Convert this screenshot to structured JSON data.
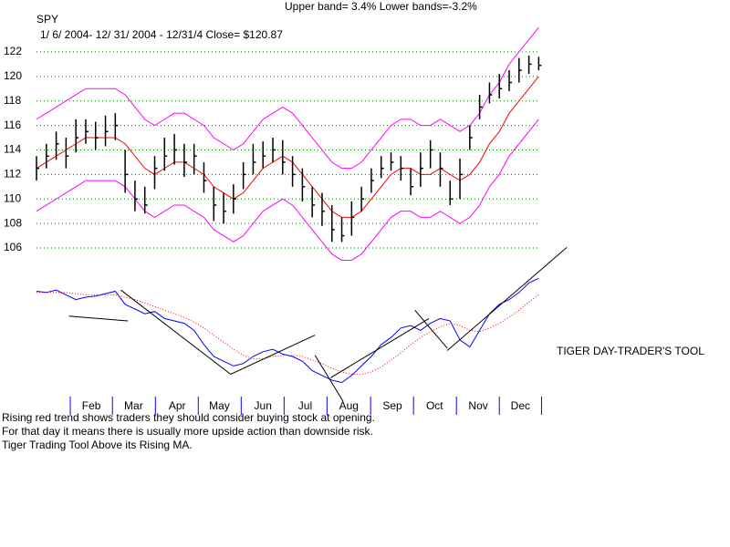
{
  "header": {
    "symbol": "SPY",
    "range": "1/ 6/ 2004- 12/ 31/ 2004 - 12/31/4   Close= $120.87",
    "bands": "Upper band= 3.4%    Lower bands=-3.2%",
    "tool": "TIGER DAY-TRADER'S TOOL"
  },
  "notes": [
    "Rising red trend shows traders they should consider buying stock at opening.",
    " For that day it means there is usually more upside action than downside risk.",
    "Tiger Trading Tool Above its Rising MA."
  ],
  "chart_data": [
    {
      "type": "ohlc",
      "bar_color": "#000000",
      "x": [
        6,
        13,
        20,
        27,
        34,
        41,
        48,
        55,
        62,
        69,
        76,
        83,
        90,
        97,
        104,
        111,
        118,
        125,
        132,
        139,
        146,
        153,
        160,
        167,
        174,
        181,
        188,
        195,
        202,
        209,
        216,
        223,
        230,
        237,
        244,
        251,
        258,
        265,
        272,
        279,
        286,
        293,
        300,
        307,
        314,
        321,
        328,
        335,
        342,
        349,
        356,
        363
      ],
      "high": [
        113.5,
        114.5,
        115.5,
        115,
        116.5,
        116.5,
        116.3,
        116.8,
        117,
        114,
        111.5,
        111,
        113.5,
        115,
        115.3,
        114.5,
        114.5,
        113,
        111,
        110.5,
        111.2,
        113,
        114.5,
        114.7,
        115,
        114.8,
        113.5,
        112.5,
        111,
        110.5,
        109.5,
        108.5,
        109.8,
        111,
        112.5,
        113.5,
        113.8,
        113.5,
        112.5,
        113.8,
        114.8,
        113.8,
        111.5,
        113.3,
        116,
        118.5,
        119.5,
        120.2,
        120.5,
        121.5,
        121.7,
        121.6
      ],
      "low": [
        111.5,
        112.5,
        113.2,
        112.5,
        113.8,
        114.5,
        114,
        114.3,
        114.8,
        110.5,
        109,
        108.8,
        110.8,
        112.3,
        112.8,
        111.8,
        112,
        110.5,
        108.2,
        108,
        108.8,
        110.8,
        112,
        112.5,
        113,
        112,
        111,
        109.8,
        108.5,
        107.8,
        106.5,
        106.5,
        107,
        109,
        110.5,
        111.7,
        112.3,
        111.5,
        110.3,
        111,
        112.5,
        111,
        109.5,
        110,
        114,
        116.5,
        117.8,
        118.2,
        118.8,
        119.5,
        120.2,
        120.5
      ],
      "close": [
        112.5,
        113.5,
        114.5,
        113.5,
        115,
        115.5,
        115,
        115.5,
        116,
        112,
        110,
        109.5,
        112.5,
        113.5,
        114,
        113,
        113.5,
        111.5,
        109.5,
        109,
        110,
        112,
        113,
        113.5,
        114,
        113,
        112,
        111,
        109.5,
        109,
        107.5,
        107,
        108.5,
        110,
        111.5,
        112.5,
        113,
        112.5,
        111,
        112.5,
        114,
        112.5,
        110,
        112,
        115,
        117.5,
        118.5,
        119,
        119.5,
        120.5,
        121,
        120.9
      ],
      "series": [
        {
          "color": "#ff0000",
          "values": [
            112.5,
            113,
            113.5,
            114,
            114.5,
            115,
            115,
            115,
            115,
            114.5,
            113.5,
            112.5,
            112,
            112.5,
            113,
            113,
            112.5,
            112,
            111,
            110.5,
            110,
            110.5,
            111.5,
            112.5,
            113,
            113.5,
            113,
            112,
            111,
            110,
            109,
            108.5,
            108.5,
            109,
            110,
            111,
            112,
            112.5,
            112.5,
            112,
            112,
            112.5,
            112,
            111.5,
            112,
            113,
            114.5,
            115.5,
            117,
            118,
            119,
            120
          ]
        },
        {
          "color": "#ff00ff",
          "values": [
            116.5,
            117,
            117.5,
            118,
            118.5,
            119,
            119,
            119,
            119,
            118.5,
            117.5,
            116.5,
            116,
            116.5,
            117,
            117,
            116.5,
            116,
            115,
            114.5,
            114,
            114.5,
            115.5,
            116.5,
            117,
            117.5,
            117,
            116,
            115,
            114,
            113,
            112.5,
            112.5,
            113,
            114,
            115,
            116,
            116.5,
            116.5,
            116,
            116,
            116.5,
            116,
            115.5,
            116,
            117,
            118.5,
            119.5,
            121,
            122,
            123,
            124
          ]
        },
        {
          "color": "#ff00ff",
          "values": [
            109,
            109.5,
            110,
            110.5,
            111,
            111.5,
            111.5,
            111.5,
            111.5,
            111,
            110,
            109,
            108.5,
            109,
            109.5,
            109.5,
            109,
            108.5,
            107.5,
            107,
            106.5,
            107,
            108,
            109,
            109.5,
            110,
            109.5,
            108.5,
            107.5,
            106.5,
            105.5,
            105,
            105,
            105.5,
            106.5,
            107.5,
            108.5,
            109,
            109,
            108.5,
            108.5,
            109,
            108.5,
            108,
            108.5,
            109.5,
            111,
            112,
            113.5,
            114.5,
            115.5,
            116.5
          ]
        }
      ],
      "xlim": [
        6,
        366
      ],
      "ylim": [
        104,
        125
      ],
      "yticks": [
        106,
        108,
        110,
        112,
        114,
        116,
        118,
        120,
        122
      ],
      "grid": true,
      "grid_color": "#008000"
    },
    {
      "type": "line",
      "x": [
        6,
        13,
        20,
        27,
        34,
        41,
        48,
        55,
        62,
        69,
        76,
        83,
        90,
        97,
        104,
        111,
        118,
        125,
        132,
        139,
        146,
        153,
        160,
        167,
        174,
        181,
        188,
        195,
        202,
        209,
        216,
        223,
        230,
        237,
        244,
        251,
        258,
        265,
        272,
        279,
        286,
        293,
        300,
        307,
        314,
        321,
        328,
        335,
        342,
        349,
        356,
        363
      ],
      "series": [
        {
          "color": "#0000ff",
          "values": [
            85,
            84,
            86,
            82,
            78,
            80,
            81,
            83,
            85,
            74,
            70,
            66,
            68,
            62,
            60,
            58,
            52,
            40,
            30,
            26,
            22,
            24,
            30,
            34,
            36,
            32,
            30,
            26,
            18,
            14,
            10,
            8,
            14,
            22,
            30,
            40,
            46,
            54,
            56,
            52,
            58,
            62,
            60,
            44,
            38,
            52,
            66,
            74,
            78,
            84,
            92,
            96
          ]
        },
        {
          "color": "#ff0000",
          "dashed": true,
          "values": [
            84,
            84,
            84,
            84,
            83,
            82,
            82,
            82,
            82,
            80,
            78,
            75,
            72,
            69,
            66,
            63,
            59,
            54,
            48,
            42,
            36,
            31,
            28,
            28,
            30,
            31,
            31,
            30,
            27,
            24,
            20,
            17,
            15,
            15,
            17,
            21,
            27,
            33,
            40,
            46,
            51,
            55,
            58,
            56,
            52,
            51,
            54,
            58,
            63,
            69,
            76,
            82
          ]
        }
      ],
      "trendlines": [
        {
          "x": [
            29,
            71
          ],
          "values": [
            64,
            60
          ]
        },
        {
          "x": [
            66,
            144
          ],
          "values": [
            86,
            15
          ]
        },
        {
          "x": [
            144,
            204
          ],
          "values": [
            15,
            48
          ]
        },
        {
          "x": [
            204,
            224
          ],
          "values": [
            31,
            -8
          ]
        },
        {
          "x": [
            215,
            285
          ],
          "values": [
            12,
            62
          ]
        },
        {
          "x": [
            275,
            298
          ],
          "values": [
            69,
            37
          ]
        },
        {
          "x": [
            298,
            383
          ],
          "values": [
            35,
            122
          ]
        }
      ],
      "trend_color": "#000000",
      "xlim": [
        6,
        366
      ],
      "ylim": [
        -10,
        100
      ],
      "xticks": [
        {
          "value": 45,
          "label": "Feb"
        },
        {
          "value": 75,
          "label": "Mar"
        },
        {
          "value": 106,
          "label": "Apr"
        },
        {
          "value": 136,
          "label": "May"
        },
        {
          "value": 167,
          "label": "Jun"
        },
        {
          "value": 197,
          "label": "Jul"
        },
        {
          "value": 228,
          "label": "Aug"
        },
        {
          "value": 259,
          "label": "Sep"
        },
        {
          "value": 289,
          "label": "Oct"
        },
        {
          "value": 320,
          "label": "Nov"
        },
        {
          "value": 350,
          "label": "Dec"
        }
      ]
    }
  ]
}
